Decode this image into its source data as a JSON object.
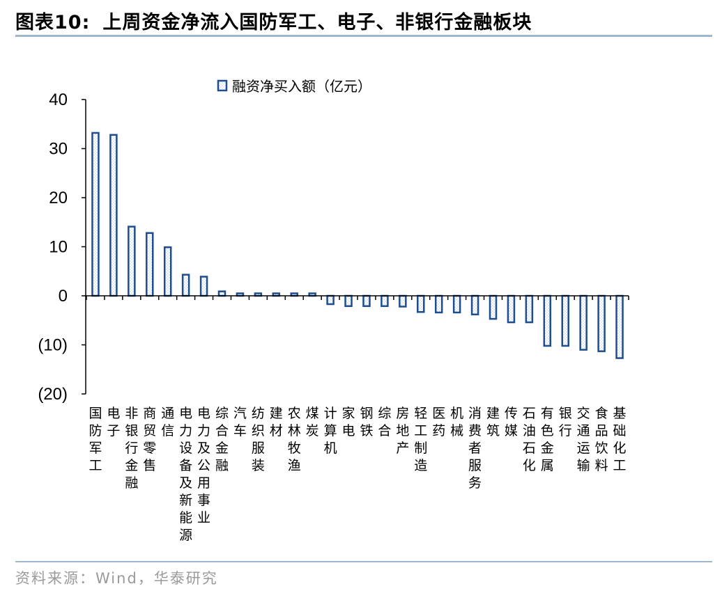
{
  "figure": {
    "title_number": "图表10:",
    "title_text": "上周资金净流入国防军工、电子、非银行金融板块",
    "source": "资料来源：Wind，华泰研究"
  },
  "colors": {
    "bar_stroke": "#1f4e8c",
    "bar_hatch": "#dfe8f3",
    "axis": "#000000",
    "rule": "#9fb6cd"
  },
  "chart_data": {
    "type": "bar",
    "legend": "融资净买入额（亿元）",
    "legend_position": "top-center",
    "grid": false,
    "ylim": [
      -20,
      40
    ],
    "yticks": [
      40,
      30,
      20,
      10,
      0,
      -10,
      -20
    ],
    "ytick_labels": [
      "40",
      "30",
      "20",
      "10",
      "0",
      "(10)",
      "(20)"
    ],
    "categories": [
      "国防军工",
      "电子",
      "非银行金融",
      "商贸零售",
      "通信",
      "电力设备及新能源",
      "电力及公用事业",
      "综合金融",
      "汽车",
      "纺织服装",
      "建材",
      "农林牧渔",
      "煤炭",
      "计算机",
      "家电",
      "钢铁",
      "综合",
      "房地产",
      "轻工制造",
      "医药",
      "机械",
      "消费者服务",
      "建筑",
      "传媒",
      "石油石化",
      "有色金属",
      "银行",
      "交通运输",
      "食品饮料",
      "基础化工"
    ],
    "series": [
      {
        "name": "融资净买入额（亿元）",
        "values": [
          33.2,
          32.8,
          14.1,
          12.8,
          9.9,
          4.3,
          3.9,
          0.9,
          0.5,
          0.5,
          0.5,
          0.5,
          0.5,
          -1.7,
          -2.1,
          -2.1,
          -2.1,
          -2.2,
          -3.3,
          -3.4,
          -3.4,
          -3.8,
          -4.7,
          -5.4,
          -5.4,
          -10.2,
          -10.2,
          -11.0,
          -11.3,
          -12.7
        ]
      }
    ]
  }
}
